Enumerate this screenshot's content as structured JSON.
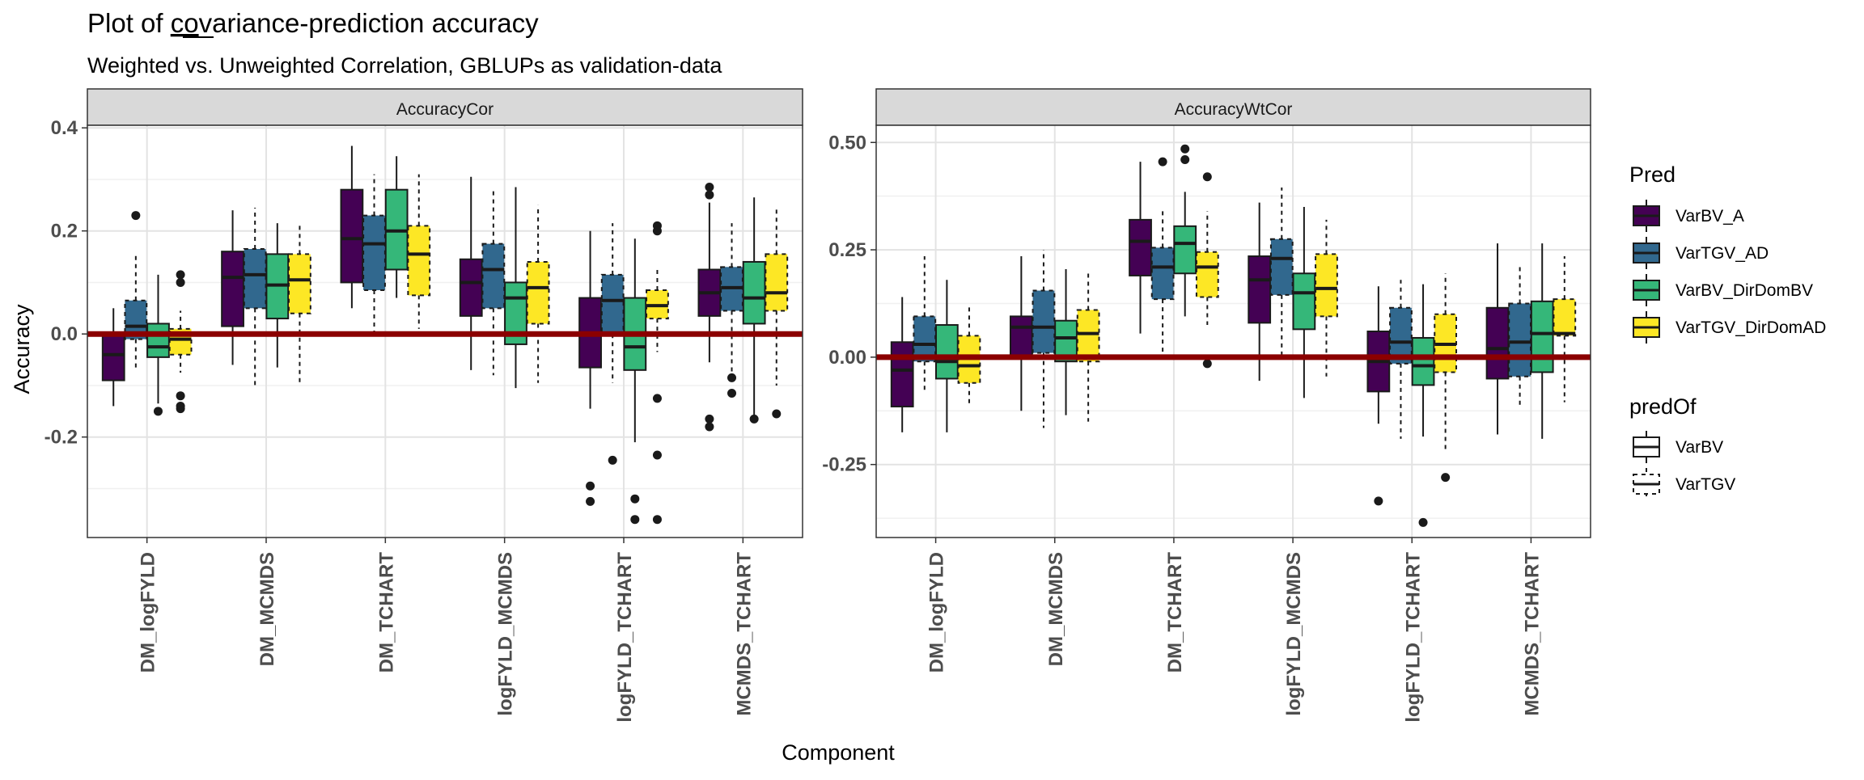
{
  "chart_data": {
    "type": "boxplot",
    "title_prefix": "Plot of ",
    "title_underlined": "co",
    "title_suffix": "variance-prediction accuracy",
    "subtitle": "Weighted vs. Unweighted Correlation, GBLUPs as validation-data",
    "xlabel": "Component",
    "ylabel": "Accuracy",
    "categories": [
      "DM_logFYLD",
      "DM_MCMDS",
      "DM_TCHART",
      "logFYLD_MCMDS",
      "logFYLD_TCHART",
      "MCMDS_TCHART"
    ],
    "reference_line": {
      "y": 0,
      "color": "#8B0000"
    },
    "legend_pred": {
      "title": "Pred",
      "items": [
        {
          "name": "VarBV_A",
          "color": "#440154",
          "linetype": "solid"
        },
        {
          "name": "VarTGV_AD",
          "color": "#31688E",
          "linetype": "dashed"
        },
        {
          "name": "VarBV_DirDomBV",
          "color": "#35B779",
          "linetype": "solid"
        },
        {
          "name": "VarTGV_DirDomAD",
          "color": "#FDE725",
          "linetype": "dashed"
        }
      ]
    },
    "legend_predOf": {
      "title": "predOf",
      "items": [
        {
          "name": "VarBV",
          "linetype": "solid"
        },
        {
          "name": "VarTGV",
          "linetype": "dashed"
        }
      ]
    },
    "panels": [
      {
        "strip": "AccuracyCor",
        "ylim": [
          -0.395,
          0.405
        ],
        "yticks": [
          -0.2,
          0.0,
          0.2,
          0.4
        ],
        "ytick_labels": [
          "-0.2",
          "0.0",
          "0.2",
          "0.4"
        ],
        "series": [
          {
            "name": "VarBV_A",
            "boxes": [
              {
                "wlo": -0.14,
                "q1": -0.09,
                "med": -0.04,
                "q3": 0.0,
                "whi": 0.05,
                "outliers": []
              },
              {
                "wlo": -0.06,
                "q1": 0.015,
                "med": 0.11,
                "q3": 0.16,
                "whi": 0.24,
                "outliers": []
              },
              {
                "wlo": 0.05,
                "q1": 0.1,
                "med": 0.185,
                "q3": 0.28,
                "whi": 0.365,
                "outliers": []
              },
              {
                "wlo": -0.07,
                "q1": 0.035,
                "med": 0.1,
                "q3": 0.145,
                "whi": 0.305,
                "outliers": []
              },
              {
                "wlo": -0.145,
                "q1": -0.065,
                "med": 0.0,
                "q3": 0.07,
                "whi": 0.2,
                "outliers": [
                  -0.295,
                  -0.325
                ]
              },
              {
                "wlo": -0.055,
                "q1": 0.035,
                "med": 0.08,
                "q3": 0.125,
                "whi": 0.255,
                "outliers": [
                  0.285,
                  0.27,
                  -0.165,
                  -0.18
                ]
              }
            ]
          },
          {
            "name": "VarTGV_AD",
            "boxes": [
              {
                "wlo": -0.065,
                "q1": -0.01,
                "med": 0.015,
                "q3": 0.065,
                "whi": 0.155,
                "outliers": [
                  0.23
                ]
              },
              {
                "wlo": -0.1,
                "q1": 0.05,
                "med": 0.115,
                "q3": 0.165,
                "whi": 0.245,
                "outliers": []
              },
              {
                "wlo": 0.005,
                "q1": 0.085,
                "med": 0.175,
                "q3": 0.23,
                "whi": 0.31,
                "outliers": []
              },
              {
                "wlo": -0.08,
                "q1": 0.05,
                "med": 0.125,
                "q3": 0.175,
                "whi": 0.28,
                "outliers": []
              },
              {
                "wlo": -0.095,
                "q1": 0.0,
                "med": 0.065,
                "q3": 0.115,
                "whi": 0.215,
                "outliers": [
                  -0.245
                ]
              },
              {
                "wlo": -0.085,
                "q1": 0.045,
                "med": 0.09,
                "q3": 0.13,
                "whi": 0.215,
                "outliers": [
                  -0.085,
                  -0.115
                ]
              }
            ]
          },
          {
            "name": "VarBV_DirDomBV",
            "boxes": [
              {
                "wlo": -0.135,
                "q1": -0.045,
                "med": -0.025,
                "q3": 0.02,
                "whi": 0.115,
                "outliers": [
                  -0.15
                ]
              },
              {
                "wlo": -0.065,
                "q1": 0.03,
                "med": 0.095,
                "q3": 0.155,
                "whi": 0.215,
                "outliers": []
              },
              {
                "wlo": 0.07,
                "q1": 0.125,
                "med": 0.2,
                "q3": 0.28,
                "whi": 0.345,
                "outliers": []
              },
              {
                "wlo": -0.105,
                "q1": -0.02,
                "med": 0.07,
                "q3": 0.1,
                "whi": 0.285,
                "outliers": []
              },
              {
                "wlo": -0.21,
                "q1": -0.07,
                "med": -0.025,
                "q3": 0.07,
                "whi": 0.185,
                "outliers": [
                  -0.32,
                  -0.36
                ]
              },
              {
                "wlo": -0.165,
                "q1": 0.02,
                "med": 0.07,
                "q3": 0.14,
                "whi": 0.265,
                "outliers": [
                  -0.165
                ]
              }
            ]
          },
          {
            "name": "VarTGV_DirDomAD",
            "boxes": [
              {
                "wlo": -0.075,
                "q1": -0.04,
                "med": -0.01,
                "q3": 0.01,
                "whi": 0.045,
                "outliers": [
                  0.115,
                  0.1,
                  -0.12,
                  -0.14,
                  -0.145
                ]
              },
              {
                "wlo": -0.1,
                "q1": 0.04,
                "med": 0.105,
                "q3": 0.155,
                "whi": 0.215,
                "outliers": []
              },
              {
                "wlo": 0.01,
                "q1": 0.075,
                "med": 0.155,
                "q3": 0.21,
                "whi": 0.31,
                "outliers": []
              },
              {
                "wlo": -0.095,
                "q1": 0.02,
                "med": 0.09,
                "q3": 0.14,
                "whi": 0.25,
                "outliers": []
              },
              {
                "wlo": -0.035,
                "q1": 0.03,
                "med": 0.055,
                "q3": 0.085,
                "whi": 0.125,
                "outliers": [
                  0.21,
                  0.2,
                  -0.125,
                  -0.235,
                  -0.36
                ]
              },
              {
                "wlo": -0.1,
                "q1": 0.045,
                "med": 0.08,
                "q3": 0.155,
                "whi": 0.245,
                "outliers": [
                  -0.155
                ]
              }
            ]
          }
        ]
      },
      {
        "strip": "AccuracyWtCor",
        "ylim": [
          -0.42,
          0.54
        ],
        "yticks": [
          -0.25,
          0.0,
          0.25,
          0.5
        ],
        "ytick_labels": [
          "-0.25",
          "0.00",
          "0.25",
          "0.50"
        ],
        "series": [
          {
            "name": "VarBV_A",
            "boxes": [
              {
                "wlo": -0.175,
                "q1": -0.115,
                "med": -0.03,
                "q3": 0.035,
                "whi": 0.14,
                "outliers": []
              },
              {
                "wlo": -0.125,
                "q1": 0.0,
                "med": 0.07,
                "q3": 0.095,
                "whi": 0.235,
                "outliers": []
              },
              {
                "wlo": 0.055,
                "q1": 0.19,
                "med": 0.27,
                "q3": 0.32,
                "whi": 0.455,
                "outliers": []
              },
              {
                "wlo": -0.055,
                "q1": 0.08,
                "med": 0.18,
                "q3": 0.235,
                "whi": 0.36,
                "outliers": []
              },
              {
                "wlo": -0.155,
                "q1": -0.08,
                "med": -0.01,
                "q3": 0.06,
                "whi": 0.165,
                "outliers": [
                  -0.335
                ]
              },
              {
                "wlo": -0.18,
                "q1": -0.05,
                "med": 0.02,
                "q3": 0.115,
                "whi": 0.265,
                "outliers": []
              }
            ]
          },
          {
            "name": "VarTGV_AD",
            "boxes": [
              {
                "wlo": -0.085,
                "q1": -0.01,
                "med": 0.03,
                "q3": 0.095,
                "whi": 0.235,
                "outliers": []
              },
              {
                "wlo": -0.165,
                "q1": 0.01,
                "med": 0.07,
                "q3": 0.155,
                "whi": 0.25,
                "outliers": []
              },
              {
                "wlo": 0.01,
                "q1": 0.135,
                "med": 0.21,
                "q3": 0.255,
                "whi": 0.34,
                "outliers": [
                  0.455
                ]
              },
              {
                "wlo": -0.005,
                "q1": 0.145,
                "med": 0.23,
                "q3": 0.275,
                "whi": 0.395,
                "outliers": []
              },
              {
                "wlo": -0.19,
                "q1": -0.015,
                "med": 0.035,
                "q3": 0.115,
                "whi": 0.18,
                "outliers": []
              },
              {
                "wlo": -0.12,
                "q1": -0.045,
                "med": 0.035,
                "q3": 0.125,
                "whi": 0.21,
                "outliers": []
              }
            ]
          },
          {
            "name": "VarBV_DirDomBV",
            "boxes": [
              {
                "wlo": -0.175,
                "q1": -0.05,
                "med": -0.01,
                "q3": 0.075,
                "whi": 0.18,
                "outliers": []
              },
              {
                "wlo": -0.135,
                "q1": -0.01,
                "med": 0.045,
                "q3": 0.085,
                "whi": 0.205,
                "outliers": []
              },
              {
                "wlo": 0.095,
                "q1": 0.195,
                "med": 0.265,
                "q3": 0.305,
                "whi": 0.385,
                "outliers": [
                  0.485,
                  0.46
                ]
              },
              {
                "wlo": -0.095,
                "q1": 0.065,
                "med": 0.15,
                "q3": 0.195,
                "whi": 0.35,
                "outliers": []
              },
              {
                "wlo": -0.185,
                "q1": -0.065,
                "med": -0.02,
                "q3": 0.045,
                "whi": 0.17,
                "outliers": [
                  -0.385
                ]
              },
              {
                "wlo": -0.19,
                "q1": -0.035,
                "med": 0.055,
                "q3": 0.13,
                "whi": 0.265,
                "outliers": []
              }
            ]
          },
          {
            "name": "VarTGV_DirDomAD",
            "boxes": [
              {
                "wlo": -0.115,
                "q1": -0.06,
                "med": -0.02,
                "q3": 0.05,
                "whi": 0.125,
                "outliers": []
              },
              {
                "wlo": -0.15,
                "q1": -0.01,
                "med": 0.055,
                "q3": 0.11,
                "whi": 0.195,
                "outliers": []
              },
              {
                "wlo": 0.075,
                "q1": 0.14,
                "med": 0.21,
                "q3": 0.245,
                "whi": 0.34,
                "outliers": [
                  0.42,
                  -0.015
                ]
              },
              {
                "wlo": -0.045,
                "q1": 0.095,
                "med": 0.16,
                "q3": 0.24,
                "whi": 0.32,
                "outliers": []
              },
              {
                "wlo": -0.215,
                "q1": -0.035,
                "med": 0.03,
                "q3": 0.1,
                "whi": 0.195,
                "outliers": [
                  -0.28
                ]
              },
              {
                "wlo": -0.105,
                "q1": 0.05,
                "med": 0.055,
                "q3": 0.135,
                "whi": 0.235,
                "outliers": []
              }
            ]
          }
        ]
      }
    ]
  }
}
